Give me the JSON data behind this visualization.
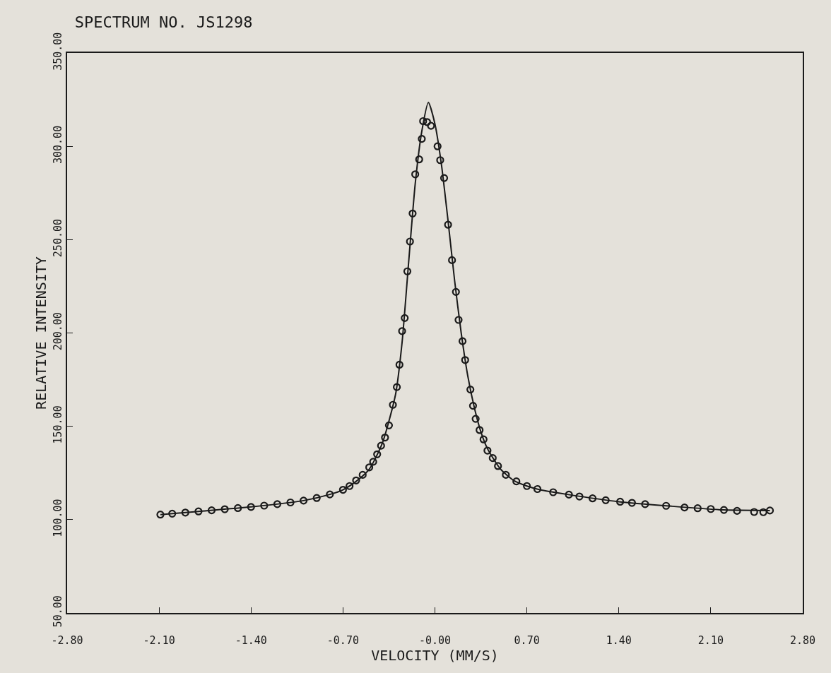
{
  "chart_data": {
    "type": "scatter",
    "title": "SPECTRUM NO. JS1298",
    "xlabel": "VELOCITY (MM/S)",
    "ylabel": "RELATIVE INTENSITY",
    "xlim": [
      -2.8,
      2.8
    ],
    "xticks": [
      {
        "value": -2.8,
        "label": "-2.80"
      },
      {
        "value": -2.1,
        "label": "-2.10"
      },
      {
        "value": -1.4,
        "label": "-1.40"
      },
      {
        "value": -0.7,
        "label": "-0.70"
      },
      {
        "value": 0,
        "label": "-0.00"
      },
      {
        "value": 0.7,
        "label": "0.70"
      },
      {
        "value": 1.4,
        "label": "1.40"
      },
      {
        "value": 2.1,
        "label": "2.10"
      },
      {
        "value": 2.8,
        "label": "2.80"
      }
    ],
    "ylim": [
      50,
      350
    ],
    "yticks": [
      {
        "value": 50,
        "label": "50.00"
      },
      {
        "value": 100,
        "label": "100.00"
      },
      {
        "value": 150,
        "label": "150.00"
      },
      {
        "value": 200,
        "label": "200.00"
      },
      {
        "value": 250,
        "label": "250.00"
      },
      {
        "value": 300,
        "label": "300.00"
      },
      {
        "value": 350,
        "label": "350.00"
      }
    ],
    "grid": false,
    "series": [
      {
        "marker": "circle",
        "color": "#1a1a1a",
        "x": [
          -2.09,
          -2.0,
          -1.9,
          -1.8,
          -1.7,
          -1.6,
          -1.5,
          -1.4,
          -1.3,
          -1.2,
          -1.1,
          -1.0,
          -0.9,
          -0.8,
          -0.7,
          -0.65,
          -0.6,
          -0.55,
          -0.5,
          -0.47,
          -0.44,
          -0.41,
          -0.38,
          -0.35,
          -0.32,
          -0.29,
          -0.27,
          -0.25,
          -0.23,
          -0.21,
          -0.19,
          -0.17,
          -0.15,
          -0.12,
          -0.1,
          -0.09,
          -0.06,
          -0.03,
          0.02,
          0.04,
          0.07,
          0.1,
          0.13,
          0.16,
          0.18,
          0.21,
          0.23,
          0.27,
          0.29,
          0.31,
          0.34,
          0.37,
          0.4,
          0.44,
          0.48,
          0.54,
          0.62,
          0.7,
          0.78,
          0.9,
          1.02,
          1.1,
          1.2,
          1.3,
          1.41,
          1.5,
          1.6,
          1.76,
          1.9,
          2.0,
          2.1,
          2.2,
          2.3,
          2.43,
          2.5,
          2.55
        ],
        "values": [
          102.7,
          103.2,
          103.8,
          104.4,
          105.0,
          105.6,
          106.2,
          106.8,
          107.5,
          108.3,
          109.2,
          110.2,
          111.6,
          113.5,
          116,
          118,
          121,
          124,
          128,
          131,
          135,
          139.6,
          144,
          150.5,
          161.5,
          171,
          183,
          201,
          208,
          233,
          249,
          264,
          285,
          293,
          304,
          313.5,
          313,
          311,
          300,
          292.6,
          283,
          258,
          239,
          222,
          207,
          195.6,
          185.5,
          169.7,
          161,
          154,
          148,
          143,
          137,
          133,
          128.7,
          124,
          120.5,
          118,
          116.4,
          114.7,
          113.4,
          112.4,
          111.4,
          110.4,
          109.6,
          109,
          108.3,
          107.4,
          106.5,
          106.1,
          105.7,
          105.2,
          104.7,
          104.1,
          104.0,
          104.9
        ]
      },
      {
        "type": "line",
        "color": "#1a1a1a",
        "x": [
          -2.09,
          -1.8,
          -1.4,
          -1.0,
          -0.8,
          -0.7,
          -0.6,
          -0.5,
          -0.4,
          -0.3,
          -0.25,
          -0.2,
          -0.15,
          -0.1,
          -0.05,
          0.0,
          0.05,
          0.1,
          0.15,
          0.2,
          0.25,
          0.3,
          0.35,
          0.4,
          0.5,
          0.6,
          0.7,
          0.8,
          1.0,
          1.4,
          1.8,
          2.2,
          2.55
        ],
        "values": [
          102.7,
          104.4,
          106.8,
          110.2,
          113.5,
          116,
          120.5,
          127,
          141,
          167,
          195,
          238,
          280,
          308,
          323.5,
          312,
          290,
          260,
          228,
          200,
          177,
          160,
          147,
          138,
          127,
          121,
          118,
          116,
          113.6,
          109.6,
          107.2,
          105.2,
          104.9
        ]
      }
    ]
  }
}
